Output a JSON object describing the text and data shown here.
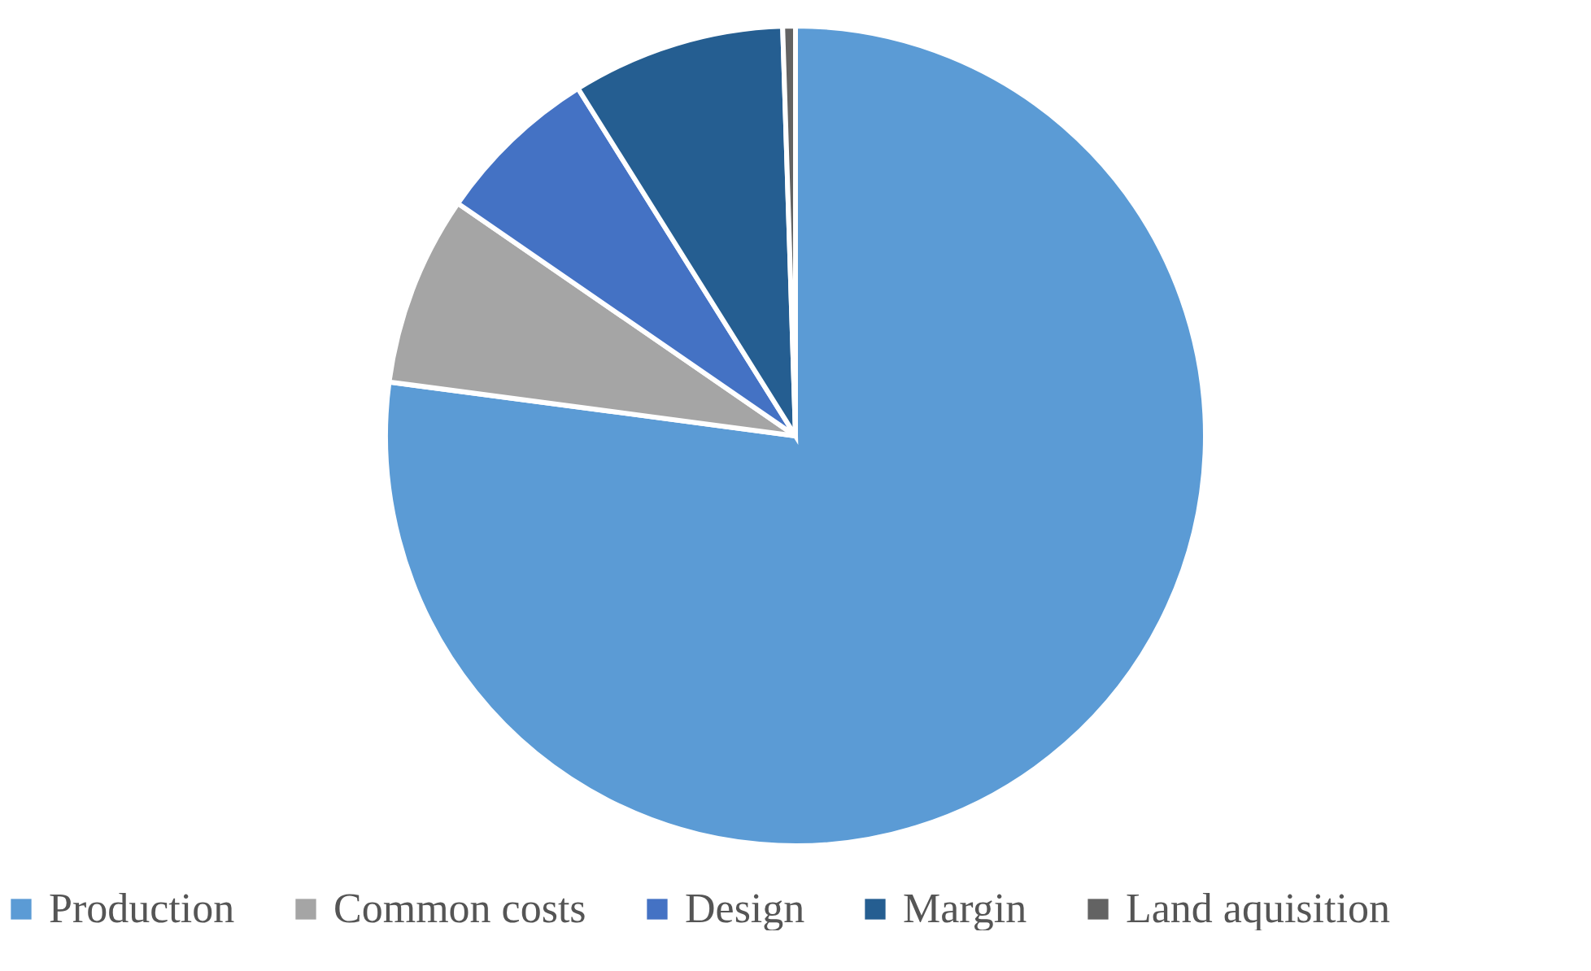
{
  "chart_data": {
    "type": "pie",
    "categories": [
      "Production",
      "Common costs",
      "Design",
      "Margin",
      "Land aquisition"
    ],
    "values": [
      77.1,
      7.5,
      6.5,
      8.4,
      0.5
    ],
    "colors": [
      "#5b9bd5",
      "#a5a5a5",
      "#4472c4",
      "#255e91",
      "#636363"
    ],
    "legend": "bottom"
  }
}
